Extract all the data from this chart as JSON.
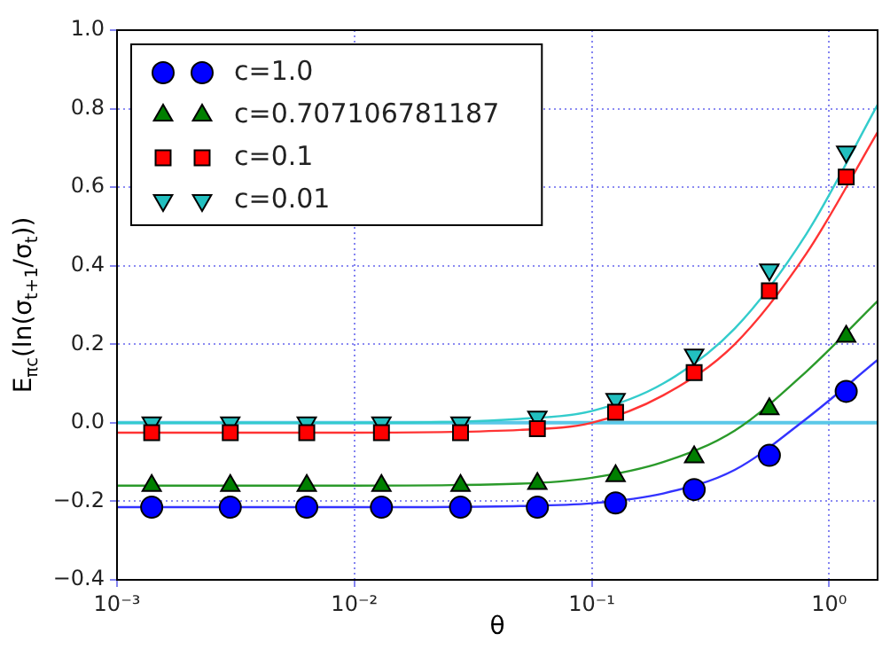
{
  "chart_data": {
    "type": "scatter",
    "xlabel": "θ",
    "ylabel": "E$_{πc}$(ln(σ$_{t+1}$/σ$_{t}$))",
    "log": "x",
    "grid": true,
    "legend": "top left",
    "xlim": [
      0.001,
      1.6
    ],
    "xticks": [
      {
        "value": 0.001,
        "label": "10⁻³"
      },
      {
        "value": 0.01,
        "label": "10⁻²"
      },
      {
        "value": 0.1,
        "label": "10⁻¹"
      },
      {
        "value": 1,
        "label": "10⁰"
      }
    ],
    "ylim": [
      -0.4,
      1.0
    ],
    "yticks": [
      {
        "value": -0.4,
        "label": "−0.4"
      },
      {
        "value": -0.2,
        "label": "−0.2"
      },
      {
        "value": 0,
        "label": "0.0"
      },
      {
        "value": 0.2,
        "label": "0.2"
      },
      {
        "value": 0.4,
        "label": "0.4"
      },
      {
        "value": 0.6,
        "label": "0.6"
      },
      {
        "value": 0.8,
        "label": "0.8"
      },
      {
        "value": 1.0,
        "label": "1.0"
      }
    ],
    "x": [
      0.0014,
      0.003,
      0.0063,
      0.013,
      0.028,
      0.059,
      0.126,
      0.27,
      0.56,
      1.18
    ],
    "ref_lines": [
      {
        "axis": "y",
        "value": 0,
        "color": "#5bc8e8"
      }
    ],
    "series": [
      {
        "name": "c=1.0",
        "marker": "circle",
        "color": "#0000ff",
        "values": [
          -0.215,
          -0.215,
          -0.215,
          -0.215,
          -0.215,
          -0.215,
          -0.204,
          -0.17,
          -0.083,
          0.08
        ]
      },
      {
        "name": "c=0.707106781187",
        "marker": "triangle",
        "color": "#007f00",
        "values": [
          -0.16,
          -0.16,
          -0.16,
          -0.16,
          -0.16,
          -0.155,
          -0.135,
          -0.087,
          0.035,
          0.22
        ]
      },
      {
        "name": "c=0.1",
        "marker": "square",
        "color": "#ff0000",
        "values": [
          -0.025,
          -0.025,
          -0.025,
          -0.025,
          -0.025,
          -0.015,
          0.027,
          0.128,
          0.336,
          0.626
        ]
      },
      {
        "name": "c=0.01",
        "marker": "triangle-down",
        "color": "#22bfbf",
        "values": [
          0,
          0,
          0,
          0,
          0,
          0.015,
          0.06,
          0.173,
          0.39,
          0.69
        ]
      },
      {
        "type": "line",
        "marker": "none",
        "color": "#3333ff",
        "x": [
          0.001,
          0.01,
          0.05,
          0.1,
          0.2,
          0.4,
          0.8,
          1.6
        ],
        "values": [
          -0.215,
          -0.215,
          -0.212,
          -0.205,
          -0.18,
          -0.12,
          0.01,
          0.16
        ]
      },
      {
        "type": "line",
        "marker": "none",
        "color": "#2a9a2a",
        "x": [
          0.001,
          0.01,
          0.05,
          0.1,
          0.2,
          0.4,
          0.8,
          1.6
        ],
        "values": [
          -0.16,
          -0.16,
          -0.155,
          -0.14,
          -0.1,
          -0.02,
          0.13,
          0.31
        ]
      },
      {
        "type": "line",
        "marker": "none",
        "color": "#ff3333",
        "x": [
          0.001,
          0.01,
          0.05,
          0.1,
          0.2,
          0.4,
          0.8,
          1.6
        ],
        "values": [
          -0.025,
          -0.025,
          -0.018,
          0,
          0.07,
          0.2,
          0.43,
          0.74
        ]
      },
      {
        "type": "line",
        "marker": "none",
        "color": "#33cccc",
        "x": [
          0.001,
          0.01,
          0.05,
          0.1,
          0.2,
          0.4,
          0.8,
          1.6
        ],
        "values": [
          0,
          0,
          0.01,
          0.03,
          0.1,
          0.24,
          0.48,
          0.81
        ]
      }
    ]
  }
}
